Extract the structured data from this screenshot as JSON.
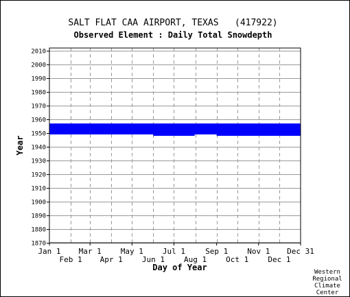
{
  "chart_data": {
    "type": "heatmap",
    "title": "SALT FLAT CAA AIRPORT, TEXAS   (417922)",
    "subtitle": "Observed Element : Daily Total Snowdepth",
    "xlabel": "Day of Year",
    "ylabel": "Year",
    "ylim": [
      1870,
      2012
    ],
    "y_ticks": [
      "2010",
      "2000",
      "1990",
      "1980",
      "1970",
      "1960",
      "1950",
      "1940",
      "1930",
      "1920",
      "1910",
      "1900",
      "1890",
      "1880",
      "1870"
    ],
    "x_ticks_top_row": [
      "Jan 1",
      "Mar 1",
      "May 1",
      "Jul 1",
      "Sep 1",
      "Nov 1",
      "Dec 31"
    ],
    "x_ticks_bottom_row": [
      "Feb 1",
      "Apr 1",
      "Jun 1",
      "Aug 1",
      "Oct 1",
      "Dec 1"
    ],
    "series": [
      {
        "color": "#0000ff",
        "spans": [
          {
            "day_start": 1,
            "day_end": 366,
            "year_start": 1949,
            "year_end": 1957
          },
          {
            "day_start": 60,
            "day_end": 366,
            "year_start": 1949,
            "year_end": 1957
          },
          {
            "day_start": 152,
            "day_end": 212,
            "year_start": 1948,
            "year_end": 1949
          },
          {
            "day_start": 244,
            "day_end": 366,
            "year_start": 1948,
            "year_end": 1949
          }
        ]
      }
    ],
    "grid": true
  },
  "credit": [
    "Western",
    "Regional",
    "Climate",
    "Center"
  ],
  "colors": {
    "data": "#0000ff",
    "grid": "#999999",
    "axis": "#000000"
  }
}
